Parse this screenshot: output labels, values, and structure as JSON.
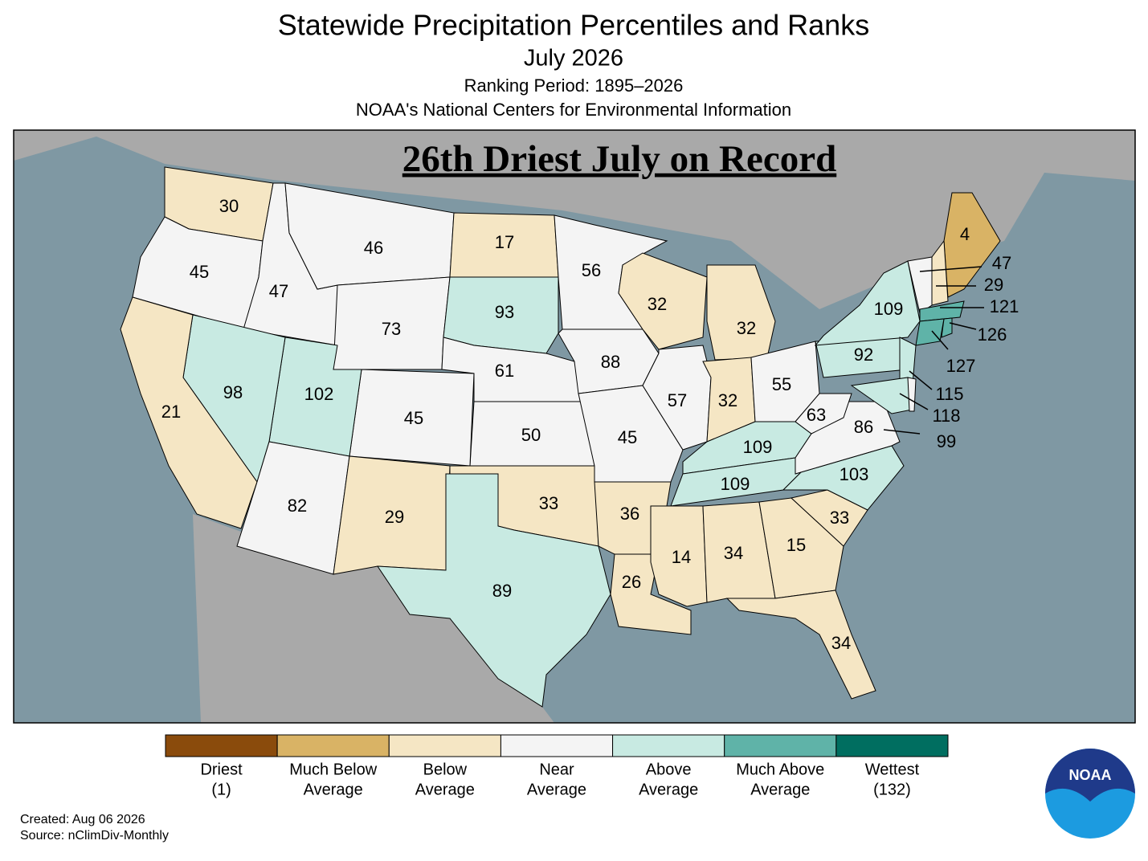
{
  "header": {
    "title": "Statewide Precipitation Percentiles and Ranks",
    "subtitle": "July 2026",
    "period": "Ranking Period: 1895–2026",
    "org": "NOAA's National Centers for Environmental Information"
  },
  "map": {
    "banner": "26th Driest July on Record",
    "states": [
      {
        "rank": 30,
        "color": "#f5e6c4"
      },
      {
        "rank": 45,
        "color": "#f4f4f4"
      },
      {
        "rank": 47,
        "color": "#f4f4f4"
      },
      {
        "rank": 46,
        "color": "#f4f4f4"
      },
      {
        "rank": 73,
        "color": "#f4f4f4"
      },
      {
        "rank": 17,
        "color": "#f5e6c4"
      },
      {
        "rank": 93,
        "color": "#c8eae2"
      },
      {
        "rank": 61,
        "color": "#f4f4f4"
      },
      {
        "rank": 50,
        "color": "#f4f4f4"
      },
      {
        "rank": 45,
        "color": "#f4f4f4"
      },
      {
        "rank": 102,
        "color": "#c8eae2"
      },
      {
        "rank": 98,
        "color": "#c8eae2"
      },
      {
        "rank": 21,
        "color": "#f5e6c4"
      },
      {
        "rank": 82,
        "color": "#f4f4f4"
      },
      {
        "rank": 29,
        "color": "#f5e6c4"
      },
      {
        "rank": 33,
        "color": "#f5e6c4"
      },
      {
        "rank": 89,
        "color": "#c8eae2"
      },
      {
        "rank": 56,
        "color": "#f4f4f4"
      },
      {
        "rank": 88,
        "color": "#f4f4f4"
      },
      {
        "rank": 45,
        "color": "#f4f4f4"
      },
      {
        "rank": 36,
        "color": "#f5e6c4"
      },
      {
        "rank": 26,
        "color": "#f5e6c4"
      },
      {
        "rank": 32,
        "color": "#f5e6c4"
      },
      {
        "rank": 57,
        "color": "#f4f4f4"
      },
      {
        "rank": 32,
        "color": "#f5e6c4"
      },
      {
        "rank": 32,
        "color": "#f5e6c4"
      },
      {
        "rank": 55,
        "color": "#f4f4f4"
      },
      {
        "rank": 109,
        "color": "#c8eae2"
      },
      {
        "rank": 109,
        "color": "#c8eae2"
      },
      {
        "rank": 14,
        "color": "#f5e6c4"
      },
      {
        "rank": 34,
        "color": "#f5e6c4"
      },
      {
        "rank": 15,
        "color": "#f5e6c4"
      },
      {
        "rank": 34,
        "color": "#f5e6c4"
      },
      {
        "rank": 33,
        "color": "#f5e6c4"
      },
      {
        "rank": 103,
        "color": "#c8eae2"
      },
      {
        "rank": 86,
        "color": "#f4f4f4"
      },
      {
        "rank": 63,
        "color": "#f4f4f4"
      },
      {
        "rank": 92,
        "color": "#c8eae2"
      },
      {
        "rank": 109,
        "color": "#c8eae2"
      },
      {
        "rank": 4,
        "color": "#d9b365"
      },
      {
        "rank": 47,
        "color": "#f4f4f4"
      },
      {
        "rank": 29,
        "color": "#f5e6c4"
      },
      {
        "rank": 121,
        "color": "#5fb3a8"
      },
      {
        "rank": 126,
        "color": "#5fb3a8"
      },
      {
        "rank": 127,
        "color": "#5fb3a8"
      },
      {
        "rank": 115,
        "color": "#c8eae2"
      },
      {
        "rank": 118,
        "color": "#c8eae2"
      },
      {
        "rank": 99,
        "color": "#f4f4f4"
      }
    ]
  },
  "legend": [
    {
      "lines": [
        "Driest",
        "(1)"
      ],
      "color": "#8a4b0c"
    },
    {
      "lines": [
        "Much Below",
        "Average"
      ],
      "color": "#d9b365"
    },
    {
      "lines": [
        "Below",
        "Average"
      ],
      "color": "#f5e6c4"
    },
    {
      "lines": [
        "Near",
        "Average"
      ],
      "color": "#f4f4f4"
    },
    {
      "lines": [
        "Above",
        "Average"
      ],
      "color": "#c8eae2"
    },
    {
      "lines": [
        "Much Above",
        "Average"
      ],
      "color": "#5fb3a8"
    },
    {
      "lines": [
        "Wettest",
        "(132)"
      ],
      "color": "#006e60"
    }
  ],
  "footer": {
    "created": "Created: Aug 06 2026",
    "source": "Source: nClimDiv-Monthly"
  },
  "logo": {
    "text": "NOAA"
  }
}
